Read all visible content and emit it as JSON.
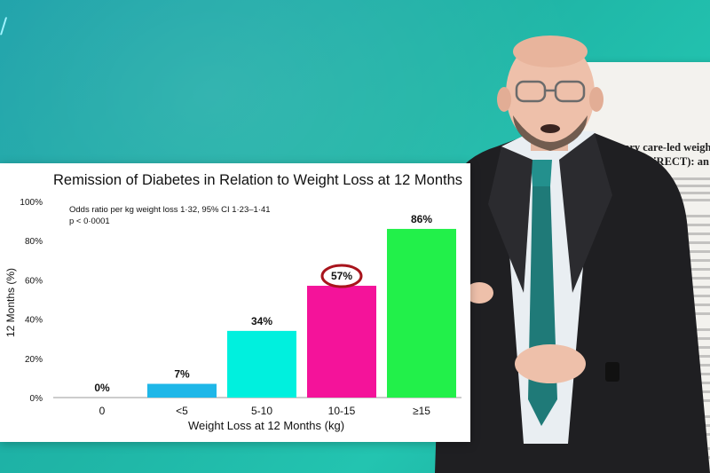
{
  "chart_data": {
    "type": "bar",
    "title": "Remission of Diabetes in Relation to Weight Loss at 12 Months",
    "xlabel": "Weight Loss at 12 Months (kg)",
    "ylabel": "12 Months (%)",
    "ylim": [
      0,
      100
    ],
    "yticks": [
      "0%",
      "20%",
      "40%",
      "60%",
      "80%",
      "100%"
    ],
    "categories": [
      "0",
      "<5",
      "5-10",
      "10-15",
      "≥15"
    ],
    "values": [
      0,
      7,
      34,
      57,
      86
    ],
    "data_labels": [
      "0%",
      "7%",
      "34%",
      "57%",
      "86%"
    ],
    "colors": [
      "#1fb7e8",
      "#1fb7e8",
      "#00f0de",
      "#f4139a",
      "#22f04a"
    ],
    "highlight": {
      "category": "10-15",
      "color": "#a8141c"
    },
    "annotation": [
      "Odds ratio per kg weight loss 1·32, 95% CI 1·23–1·41",
      "p < 0·0001"
    ],
    "grid": false
  },
  "paper": {
    "title_line1": "Primary care-led weight",
    "title_line2": "diabetes (DiRECT): an op"
  }
}
